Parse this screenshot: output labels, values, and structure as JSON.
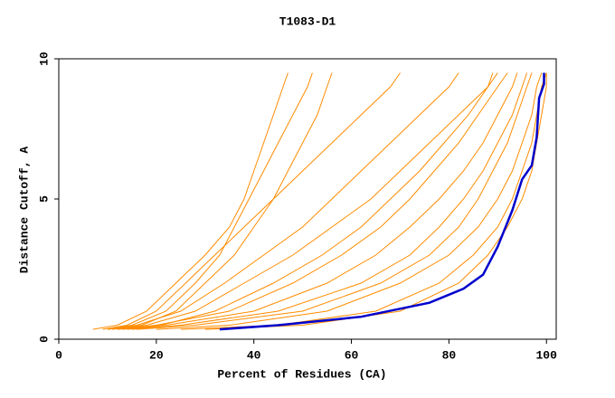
{
  "chart_data": {
    "type": "line",
    "title": "T1083-D1",
    "xlabel": "Percent of Residues (CA)",
    "ylabel": "Distance Cutoff, A",
    "xlim": [
      0,
      102
    ],
    "ylim": [
      0,
      10
    ],
    "xticks": [
      0,
      20,
      40,
      60,
      80,
      100
    ],
    "yticks": [
      0,
      5,
      10
    ],
    "series": [
      {
        "color": "#ff8c00",
        "x": [
          10,
          15,
          22,
          28,
          33,
          36,
          39,
          42,
          45,
          48,
          51,
          52
        ],
        "values": [
          0.35,
          0.5,
          1,
          2,
          3,
          4,
          5,
          6,
          7,
          8,
          9,
          9.5
        ]
      },
      {
        "color": "#ff8c00",
        "x": [
          7,
          12,
          18,
          24,
          30,
          35,
          38,
          40,
          42,
          44,
          46,
          47
        ],
        "values": [
          0.35,
          0.5,
          1,
          2,
          3,
          4,
          5,
          6,
          7,
          8,
          9,
          9.5
        ]
      },
      {
        "color": "#ff8c00",
        "x": [
          12,
          20,
          35,
          48,
          58,
          66,
          72,
          77,
          82,
          86,
          90,
          92
        ],
        "values": [
          0.35,
          0.5,
          1,
          2,
          3,
          4,
          5,
          6,
          7,
          8,
          9,
          9.5
        ]
      },
      {
        "color": "#ff8c00",
        "x": [
          15,
          25,
          45,
          62,
          72,
          78,
          83,
          87,
          90,
          93,
          95,
          96
        ],
        "values": [
          0.35,
          0.5,
          1,
          2,
          3,
          4,
          5,
          6,
          7,
          8,
          9,
          9.5
        ]
      },
      {
        "color": "#ff8c00",
        "x": [
          20,
          35,
          55,
          70,
          80,
          86,
          90,
          93,
          95,
          97,
          98,
          99
        ],
        "values": [
          0.35,
          0.5,
          1,
          2,
          3,
          4,
          5,
          6,
          7,
          8,
          9,
          9.5
        ]
      },
      {
        "color": "#ff8c00",
        "x": [
          12,
          18,
          28,
          38,
          48,
          56,
          64,
          70,
          76,
          82,
          88,
          90
        ],
        "values": [
          0.35,
          0.5,
          1,
          2,
          3,
          4,
          5,
          6,
          7,
          8,
          9,
          9.5
        ]
      },
      {
        "color": "#ff8c00",
        "x": [
          10,
          16,
          25,
          34,
          42,
          50,
          56,
          62,
          68,
          74,
          80,
          82
        ],
        "values": [
          0.35,
          0.5,
          1,
          2,
          3,
          4,
          5,
          6,
          7,
          8,
          9,
          9.5
        ]
      },
      {
        "color": "#ff8c00",
        "x": [
          14,
          22,
          40,
          55,
          65,
          72,
          78,
          83,
          87,
          90,
          93,
          94
        ],
        "values": [
          0.35,
          0.5,
          1,
          2,
          3,
          4,
          5,
          6,
          7,
          8,
          9,
          9.5
        ]
      },
      {
        "color": "#ff8c00",
        "x": [
          25,
          45,
          65,
          78,
          85,
          90,
          93,
          95,
          97,
          98,
          99,
          100
        ],
        "values": [
          0.35,
          0.5,
          1,
          2,
          3,
          4,
          5,
          6,
          7,
          8,
          9,
          9.5
        ]
      },
      {
        "color": "#ff8c00",
        "x": [
          11,
          17,
          24,
          30,
          36,
          40,
          44,
          47,
          50,
          53,
          55,
          56
        ],
        "values": [
          0.35,
          0.5,
          1,
          2,
          3,
          4,
          5,
          6,
          7,
          8,
          9,
          9.5
        ]
      },
      {
        "color": "#ff8c00",
        "x": [
          13,
          21,
          32,
          44,
          54,
          62,
          68,
          74,
          79,
          84,
          88,
          89
        ],
        "values": [
          0.35,
          0.5,
          1,
          2,
          3,
          4,
          5,
          6,
          7,
          8,
          9,
          9.5
        ]
      },
      {
        "color": "#ff8c00",
        "x": [
          30,
          50,
          70,
          82,
          88,
          92,
          95,
          97,
          98,
          99,
          100,
          100
        ],
        "values": [
          0.35,
          0.5,
          1,
          2,
          3,
          4,
          5,
          6,
          7,
          8,
          9,
          9.5
        ]
      },
      {
        "color": "#ff8c00",
        "x": [
          9,
          14,
          20,
          26,
          32,
          38,
          44,
          50,
          56,
          62,
          68,
          70
        ],
        "values": [
          0.35,
          0.5,
          1,
          2,
          3,
          4,
          5,
          6,
          7,
          8,
          9,
          9.5
        ]
      },
      {
        "color": "#ff8c00",
        "x": [
          16,
          28,
          50,
          66,
          76,
          82,
          86,
          89,
          92,
          94,
          96,
          97
        ],
        "values": [
          0.35,
          0.5,
          1,
          2,
          3,
          4,
          5,
          6,
          7,
          8,
          9,
          9.5
        ]
      },
      {
        "color": "#0000cd",
        "x": [
          33,
          45,
          62,
          76,
          83,
          87,
          90,
          93,
          95,
          97,
          98,
          98.5,
          99.5,
          99.5
        ],
        "values": [
          0.35,
          0.5,
          0.8,
          1.3,
          1.8,
          2.3,
          3.3,
          4.6,
          5.7,
          6.2,
          7.2,
          8.6,
          9.1,
          9.5
        ]
      }
    ]
  }
}
